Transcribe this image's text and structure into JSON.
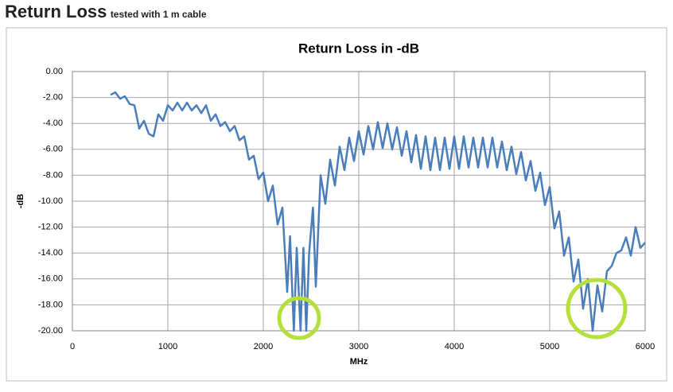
{
  "header": {
    "title": "Return Loss",
    "subtitle": "tested with 1 m cable"
  },
  "chart_data": {
    "type": "line",
    "title": "Return Loss in -dB",
    "x_label": "MHz",
    "y_label": "-dB",
    "xlim": [
      0,
      6000
    ],
    "xticks": [
      0,
      1000,
      2000,
      3000,
      4000,
      5000,
      6000
    ],
    "ylim": [
      -20,
      0
    ],
    "yticks": [
      {
        "value": 0,
        "label": "0.00"
      },
      {
        "value": -2,
        "label": "-2.00"
      },
      {
        "value": -4,
        "label": "-4.00"
      },
      {
        "value": -6,
        "label": "-6.00"
      },
      {
        "value": -8,
        "label": "-8.00"
      },
      {
        "value": -10,
        "label": "-10.00"
      },
      {
        "value": -12,
        "label": "-12.00"
      },
      {
        "value": -14,
        "label": "-14.00"
      },
      {
        "value": -16,
        "label": "-16.00"
      },
      {
        "value": -18,
        "label": "-18.00"
      },
      {
        "value": -20,
        "label": "-20.00"
      }
    ],
    "grid": true,
    "series": [
      {
        "name": "Return Loss",
        "color": "#4a7ebb",
        "x": [
          400,
          450,
          500,
          550,
          600,
          650,
          700,
          750,
          800,
          850,
          900,
          950,
          1000,
          1050,
          1100,
          1150,
          1200,
          1250,
          1300,
          1350,
          1400,
          1450,
          1500,
          1550,
          1600,
          1650,
          1700,
          1750,
          1800,
          1850,
          1900,
          1950,
          2000,
          2050,
          2100,
          2150,
          2200,
          2250,
          2280,
          2320,
          2350,
          2390,
          2420,
          2450,
          2480,
          2520,
          2550,
          2600,
          2650,
          2700,
          2750,
          2800,
          2850,
          2900,
          2950,
          3000,
          3050,
          3100,
          3150,
          3200,
          3250,
          3300,
          3350,
          3400,
          3450,
          3500,
          3550,
          3600,
          3650,
          3700,
          3750,
          3800,
          3850,
          3900,
          3950,
          4000,
          4050,
          4100,
          4150,
          4200,
          4250,
          4300,
          4350,
          4400,
          4450,
          4500,
          4550,
          4600,
          4650,
          4700,
          4750,
          4800,
          4850,
          4900,
          4950,
          5000,
          5050,
          5100,
          5150,
          5200,
          5250,
          5300,
          5350,
          5400,
          5450,
          5500,
          5550,
          5600,
          5650,
          5700,
          5750,
          5800,
          5850,
          5900,
          5950,
          6000
        ],
        "values": [
          -1.8,
          -1.6,
          -2.1,
          -1.9,
          -2.5,
          -2.6,
          -4.4,
          -3.8,
          -4.8,
          -5.0,
          -3.3,
          -3.8,
          -2.6,
          -3.0,
          -2.4,
          -3.0,
          -2.4,
          -3.0,
          -2.6,
          -3.2,
          -2.6,
          -3.8,
          -3.3,
          -4.2,
          -3.9,
          -4.6,
          -4.2,
          -5.3,
          -5.0,
          -6.8,
          -6.5,
          -8.3,
          -7.8,
          -10.0,
          -8.8,
          -11.8,
          -10.5,
          -17.0,
          -12.7,
          -20.0,
          -13.6,
          -20.0,
          -13.6,
          -20.0,
          -14.0,
          -10.5,
          -16.6,
          -8.0,
          -10.2,
          -6.8,
          -8.8,
          -5.8,
          -7.6,
          -5.1,
          -6.9,
          -4.6,
          -6.4,
          -4.2,
          -6.0,
          -3.9,
          -5.9,
          -4.0,
          -6.0,
          -4.3,
          -6.5,
          -4.6,
          -7.0,
          -4.9,
          -7.5,
          -5.0,
          -7.6,
          -5.1,
          -7.6,
          -5.1,
          -7.5,
          -5.0,
          -7.5,
          -5.0,
          -7.4,
          -5.1,
          -7.4,
          -5.1,
          -7.4,
          -5.1,
          -7.4,
          -5.4,
          -7.6,
          -5.8,
          -7.9,
          -6.2,
          -8.4,
          -6.9,
          -9.2,
          -7.8,
          -10.3,
          -8.9,
          -12.1,
          -10.8,
          -14.2,
          -12.8,
          -16.2,
          -14.5,
          -18.3,
          -16.0,
          -20.0,
          -16.5,
          -18.5,
          -15.4,
          -15.0,
          -14.0,
          -13.8,
          -12.8,
          -14.2,
          -12.0,
          -13.6,
          -13.2
        ]
      }
    ]
  }
}
